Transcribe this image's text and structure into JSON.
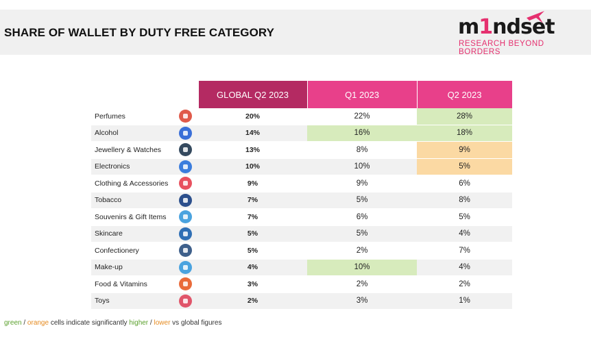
{
  "title": "SHARE OF WALLET BY DUTY FREE CATEGORY",
  "logo": {
    "word_part1": "m",
    "word_part2": "1",
    "word_part3": "nd",
    "word_part4": "set",
    "tagline": "RESEARCH BEYOND BORDERS"
  },
  "colors": {
    "header_global": "#b42a62",
    "header_q": "#e8408a",
    "higher": "#d7ebbc",
    "lower": "#fbd9a3"
  },
  "chart_data": {
    "type": "table",
    "columns": [
      "GLOBAL Q2 2023",
      "Q1 2023",
      "Q2 2023"
    ],
    "rows": [
      {
        "category": "Perfumes",
        "icon": "perfume-icon",
        "values": [
          "20%",
          "22%",
          "28%"
        ],
        "flags": [
          "",
          "",
          "higher"
        ]
      },
      {
        "category": "Alcohol",
        "icon": "cocktail-icon",
        "values": [
          "14%",
          "16%",
          "18%"
        ],
        "flags": [
          "",
          "higher",
          "higher"
        ]
      },
      {
        "category": "Jewellery & Watches",
        "icon": "necklace-icon",
        "values": [
          "13%",
          "8%",
          "9%"
        ],
        "flags": [
          "",
          "",
          "lower"
        ]
      },
      {
        "category": "Electronics",
        "icon": "tablet-icon",
        "values": [
          "10%",
          "10%",
          "5%"
        ],
        "flags": [
          "",
          "",
          "lower"
        ]
      },
      {
        "category": "Clothing & Accessories",
        "icon": "dress-icon",
        "values": [
          "9%",
          "9%",
          "6%"
        ],
        "flags": [
          "",
          "",
          ""
        ]
      },
      {
        "category": "Tobacco",
        "icon": "cigarette-icon",
        "values": [
          "7%",
          "5%",
          "8%"
        ],
        "flags": [
          "",
          "",
          ""
        ]
      },
      {
        "category": "Souvenirs & Gift Items",
        "icon": "snow-globe-icon",
        "values": [
          "7%",
          "6%",
          "5%"
        ],
        "flags": [
          "",
          "",
          ""
        ]
      },
      {
        "category": "Skincare",
        "icon": "cream-tube-icon",
        "values": [
          "5%",
          "5%",
          "4%"
        ],
        "flags": [
          "",
          "",
          ""
        ]
      },
      {
        "category": "Confectionery",
        "icon": "chocolate-icon",
        "values": [
          "5%",
          "2%",
          "7%"
        ],
        "flags": [
          "",
          "",
          ""
        ]
      },
      {
        "category": "Make-up",
        "icon": "makeup-brushes-icon",
        "values": [
          "4%",
          "10%",
          "4%"
        ],
        "flags": [
          "",
          "higher",
          ""
        ]
      },
      {
        "category": "Food & Vitamins",
        "icon": "burger-icon",
        "values": [
          "3%",
          "2%",
          "2%"
        ],
        "flags": [
          "",
          "",
          ""
        ]
      },
      {
        "category": "Toys",
        "icon": "toy-icon",
        "values": [
          "2%",
          "3%",
          "1%"
        ],
        "flags": [
          "",
          "",
          ""
        ]
      }
    ]
  },
  "icon_colors": [
    "#e05a4a",
    "#3a6fd8",
    "#34495e",
    "#3b7ddd",
    "#e8515f",
    "#2c4f8c",
    "#4aa3df",
    "#2f6fb5",
    "#3e5f8a",
    "#4aa3df",
    "#e96b3a",
    "#e0556a"
  ],
  "footnote": {
    "green": "green",
    "sep1": " / ",
    "orange": "orange",
    "mid": " cells indicate significantly ",
    "higher": "higher",
    "sep2": " / ",
    "lower": "lower",
    "end": " vs global figures"
  }
}
